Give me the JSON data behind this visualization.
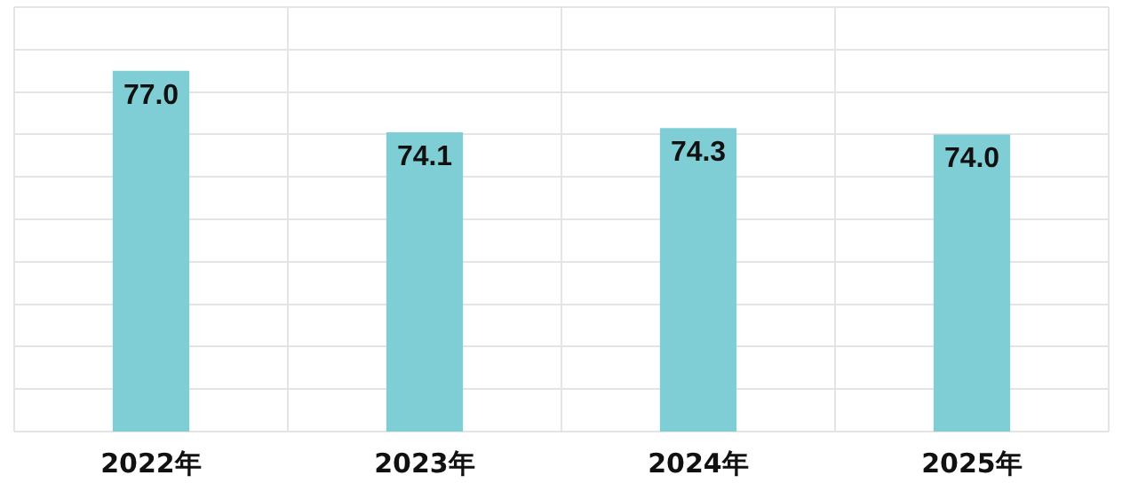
{
  "chart_data": {
    "type": "bar",
    "categories": [
      "2022年",
      "2023年",
      "2024年",
      "2025年"
    ],
    "values": [
      77.0,
      74.1,
      74.3,
      74.0
    ],
    "color": "#80ced5",
    "ylim": [
      60,
      80
    ],
    "yticks": [
      {
        "value": 60,
        "label": null
      },
      {
        "value": 62,
        "label": null
      },
      {
        "value": 64,
        "label": null
      },
      {
        "value": 66,
        "label": null
      },
      {
        "value": 68,
        "label": null
      },
      {
        "value": 70,
        "label": null
      },
      {
        "value": 72,
        "label": null
      },
      {
        "value": 74,
        "label": null
      },
      {
        "value": 76,
        "label": null
      },
      {
        "value": 78,
        "label": null
      },
      {
        "value": 80,
        "label": null
      }
    ],
    "value_labels": [
      "77.0",
      "74.1",
      "74.3",
      "74.0"
    ],
    "tick_labels": "x",
    "grid": true,
    "legend": false
  }
}
